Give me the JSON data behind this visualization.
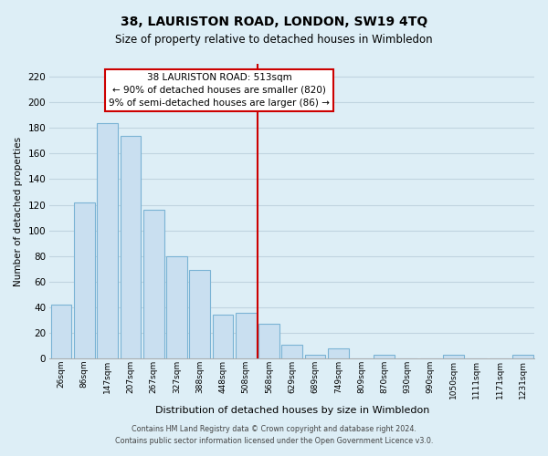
{
  "title": "38, LAURISTON ROAD, LONDON, SW19 4TQ",
  "subtitle": "Size of property relative to detached houses in Wimbledon",
  "xlabel": "Distribution of detached houses by size in Wimbledon",
  "ylabel": "Number of detached properties",
  "bar_labels": [
    "26sqm",
    "86sqm",
    "147sqm",
    "207sqm",
    "267sqm",
    "327sqm",
    "388sqm",
    "448sqm",
    "508sqm",
    "568sqm",
    "629sqm",
    "689sqm",
    "749sqm",
    "809sqm",
    "870sqm",
    "930sqm",
    "990sqm",
    "1050sqm",
    "1111sqm",
    "1171sqm",
    "1231sqm"
  ],
  "bar_values": [
    42,
    122,
    184,
    174,
    116,
    80,
    69,
    34,
    36,
    27,
    11,
    3,
    8,
    0,
    3,
    0,
    0,
    3,
    0,
    0,
    3
  ],
  "bar_color": "#c9dff0",
  "bar_edge_color": "#7ab3d4",
  "ylim": [
    0,
    230
  ],
  "yticks": [
    0,
    20,
    40,
    60,
    80,
    100,
    120,
    140,
    160,
    180,
    200,
    220
  ],
  "vline_index": 8,
  "vline_color": "#cc0000",
  "annotation_title": "38 LAURISTON ROAD: 513sqm",
  "annotation_line1": "← 90% of detached houses are smaller (820)",
  "annotation_line2": "9% of semi-detached houses are larger (86) →",
  "annotation_box_color": "#ffffff",
  "annotation_box_edge": "#cc0000",
  "footer_line1": "Contains HM Land Registry data © Crown copyright and database right 2024.",
  "footer_line2": "Contains public sector information licensed under the Open Government Licence v3.0.",
  "bg_color": "#ddeef6",
  "plot_bg_color": "#ddeef6",
  "grid_color": "#c0d4e0"
}
